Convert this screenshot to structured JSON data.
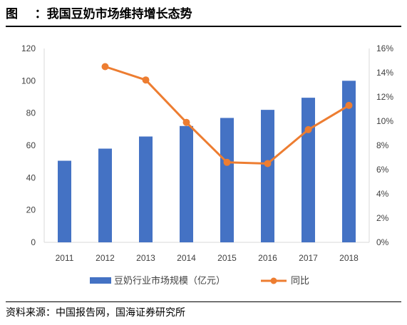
{
  "header": {
    "title": "图    ：我国豆奶市场维持增长态势"
  },
  "footer": {
    "source": "资料来源：中国报告网，国海证券研究所"
  },
  "colors": {
    "bar": "#4472C4",
    "line": "#ED7D31",
    "axis": "#D9D9D9",
    "text": "#404040"
  },
  "chart_data": {
    "type": "bar",
    "categories": [
      "2011",
      "2012",
      "2013",
      "2014",
      "2015",
      "2016",
      "2017",
      "2018"
    ],
    "series": [
      {
        "name": "豆奶行业市场规模（亿元）",
        "type": "bar",
        "axis": "left",
        "values": [
          50.5,
          58,
          65.5,
          72,
          77,
          82,
          89.5,
          100
        ]
      },
      {
        "name": "同比",
        "type": "line",
        "axis": "right",
        "values": [
          null,
          14.5,
          13.4,
          9.9,
          6.6,
          6.5,
          9.3,
          11.3
        ]
      }
    ],
    "ylim_left": [
      0,
      120
    ],
    "yticks_left": [
      "0",
      "20",
      "40",
      "60",
      "80",
      "100",
      "120"
    ],
    "ylim_right": [
      0,
      16
    ],
    "yticks_right": [
      "0%",
      "2%",
      "4%",
      "6%",
      "8%",
      "10%",
      "12%",
      "14%",
      "16%"
    ],
    "grid": false,
    "legend": "bottom"
  }
}
